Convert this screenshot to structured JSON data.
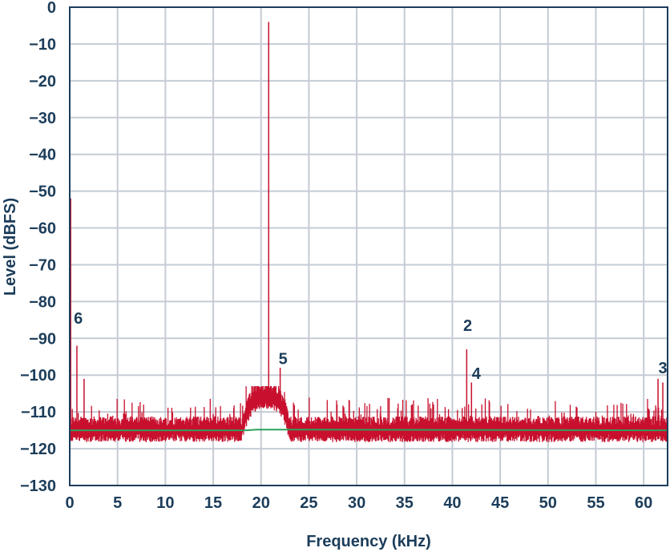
{
  "chart_data": {
    "type": "line",
    "xlabel": "Frequency (kHz)",
    "ylabel": "Level (dBFS)",
    "xlim": [
      0,
      62.5
    ],
    "ylim": [
      -130,
      0
    ],
    "x_ticks": [
      0,
      5,
      10,
      15,
      20,
      25,
      30,
      35,
      40,
      45,
      50,
      55,
      60
    ],
    "y_ticks": [
      0,
      -10,
      -20,
      -30,
      -40,
      -50,
      -60,
      -70,
      -80,
      -90,
      -100,
      -110,
      -120,
      -130
    ],
    "grid": true,
    "colors": {
      "spectrum": "#c8102e",
      "noise_floor": "#2ca05a",
      "text": "#1c3d5a",
      "grid": "#c5ccd4"
    },
    "series": [
      {
        "role": "spectrum",
        "noise_floor_db": -115,
        "noise_floor_min_db": -118,
        "noise_floor_max_db": -107,
        "bandpass_noise": {
          "x_range": [
            18.0,
            23.0
          ],
          "peak_db": -106
        },
        "spurs": [
          {
            "x": 0.1,
            "y": -52
          },
          {
            "x": 0.75,
            "y": -92
          },
          {
            "x": 1.5,
            "y": -101
          },
          {
            "x": 20.8,
            "y": -4
          },
          {
            "x": 22.0,
            "y": -98
          },
          {
            "x": 41.5,
            "y": -93
          },
          {
            "x": 42.0,
            "y": -102
          },
          {
            "x": 61.5,
            "y": -101
          },
          {
            "x": 62.0,
            "y": -102
          }
        ]
      },
      {
        "role": "noise_floor",
        "points": [
          [
            0,
            -115
          ],
          [
            18.5,
            -115
          ],
          [
            19.5,
            -114.8
          ],
          [
            20.8,
            -114.8
          ],
          [
            22.0,
            -114.8
          ],
          [
            62.5,
            -115
          ]
        ]
      }
    ],
    "annotations": [
      {
        "text": "6",
        "x": 0.9,
        "y": -86
      },
      {
        "text": "5",
        "x": 22.3,
        "y": -97
      },
      {
        "text": "2",
        "x": 41.6,
        "y": -88
      },
      {
        "text": "4",
        "x": 42.5,
        "y": -101
      },
      {
        "text": "3",
        "x": 62.0,
        "y": -99.5
      }
    ]
  }
}
